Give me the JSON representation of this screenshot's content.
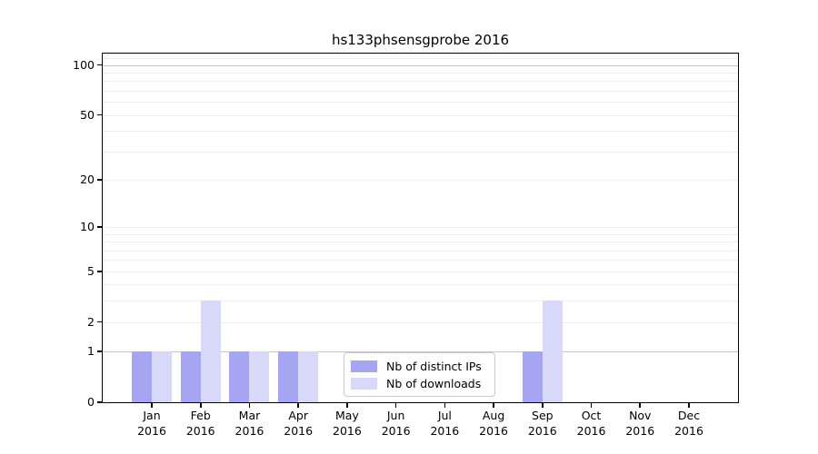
{
  "title": "hs133phsensgprobe 2016",
  "chart_data": {
    "type": "bar",
    "title": "hs133phsensgprobe 2016",
    "categories": [
      "Jan",
      "Feb",
      "Mar",
      "Apr",
      "May",
      "Jun",
      "Jul",
      "Aug",
      "Sep",
      "Oct",
      "Nov",
      "Dec"
    ],
    "x_tick_year": "2016",
    "series": [
      {
        "name": "Nb of distinct IPs",
        "color": "#a5a5f1",
        "values": [
          1,
          1,
          1,
          1,
          0,
          0,
          0,
          0,
          1,
          0,
          0,
          0
        ]
      },
      {
        "name": "Nb of downloads",
        "color": "#d8d8f9",
        "values": [
          1,
          3,
          1,
          1,
          0,
          0,
          0,
          0,
          3,
          0,
          0,
          0
        ]
      }
    ],
    "y_axis": {
      "scale": "log1p",
      "ticks": [
        0,
        1,
        2,
        5,
        10,
        20,
        50,
        100
      ],
      "ylim": [
        0,
        117
      ],
      "grid": true,
      "minor_gridlines": [
        2,
        3,
        4,
        5,
        6,
        7,
        8,
        9,
        10,
        20,
        30,
        40,
        50,
        60,
        70,
        80,
        90,
        110
      ],
      "major_gridlines": [
        1,
        100
      ]
    },
    "legend": {
      "position": "lower-center",
      "entries": [
        "Nb of distinct IPs",
        "Nb of downloads"
      ]
    }
  }
}
